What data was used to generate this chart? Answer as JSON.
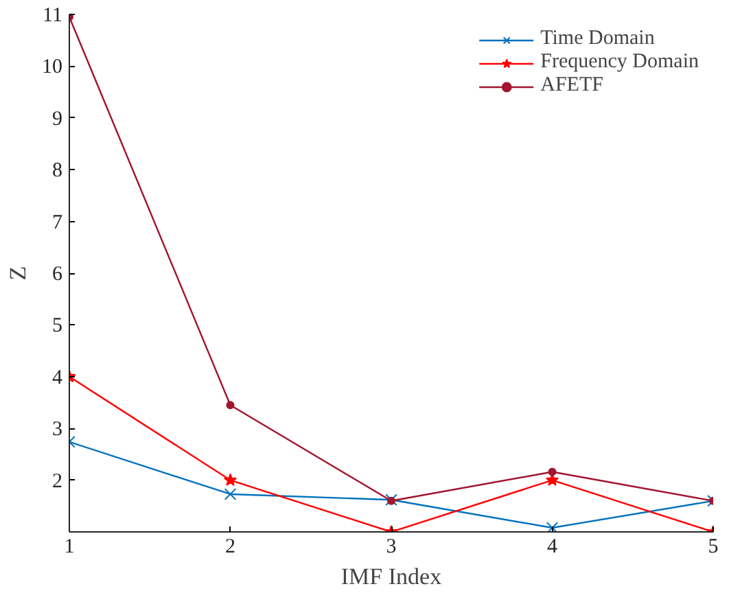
{
  "chart_data": {
    "type": "line",
    "xlabel": "IMF Index",
    "ylabel": "Z",
    "x": [
      1,
      2,
      3,
      4,
      5
    ],
    "series": [
      {
        "name": "Time Domain",
        "color": "#0072bd",
        "marker": "cross",
        "values": [
          2.74,
          1.73,
          1.62,
          1.08,
          1.6
        ]
      },
      {
        "name": "Frequency Domain",
        "color": "#ff0000",
        "marker": "star",
        "values": [
          4,
          2,
          1,
          2,
          1
        ]
      },
      {
        "name": "AFETF",
        "color": "#a2142f",
        "marker": "circle",
        "values": [
          10.95,
          3.45,
          1.6,
          2.16,
          1.6
        ]
      }
    ],
    "xlim": [
      1,
      5
    ],
    "xticks": [
      1,
      2,
      3,
      4,
      5
    ],
    "ylim": [
      1,
      11
    ],
    "yticks": [
      2,
      3,
      4,
      5,
      6,
      7,
      8,
      9,
      10,
      11
    ],
    "grid": false,
    "legend": "top right",
    "line_style": "solid"
  }
}
